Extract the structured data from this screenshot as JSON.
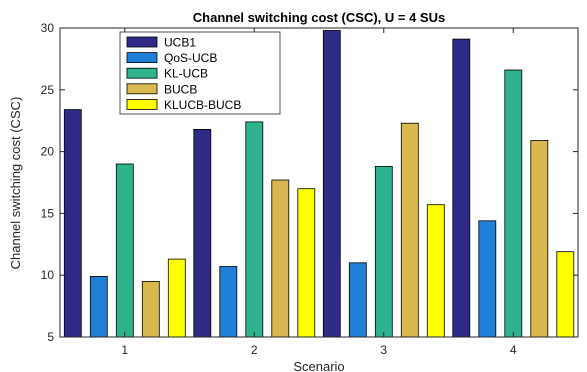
{
  "chart_data": {
    "type": "bar",
    "title": "Channel switching cost (CSC), U = 4 SUs",
    "xlabel": "Scenario",
    "ylabel": "Channel switching cost (CSC)",
    "categories": [
      "1",
      "2",
      "3",
      "4"
    ],
    "ylim": [
      5,
      30
    ],
    "yticks": [
      "5",
      "10",
      "15",
      "20",
      "25",
      "30"
    ],
    "grid": false,
    "legend_position": "top-left",
    "series": [
      {
        "name": "UCB1",
        "color": "#2e2a86",
        "values": [
          23.4,
          21.8,
          29.8,
          29.1
        ]
      },
      {
        "name": "QoS-UCB",
        "color": "#1f7fd6",
        "values": [
          9.9,
          10.7,
          11.0,
          14.4
        ]
      },
      {
        "name": "KL-UCB",
        "color": "#2fb38d",
        "values": [
          19.0,
          22.4,
          18.8,
          26.6
        ]
      },
      {
        "name": "BUCB",
        "color": "#d8b84f",
        "values": [
          9.5,
          17.7,
          22.3,
          20.9
        ]
      },
      {
        "name": "KLUCB-BUCB",
        "color": "#ffff00",
        "values": [
          11.3,
          17.0,
          15.7,
          11.9
        ]
      }
    ]
  }
}
